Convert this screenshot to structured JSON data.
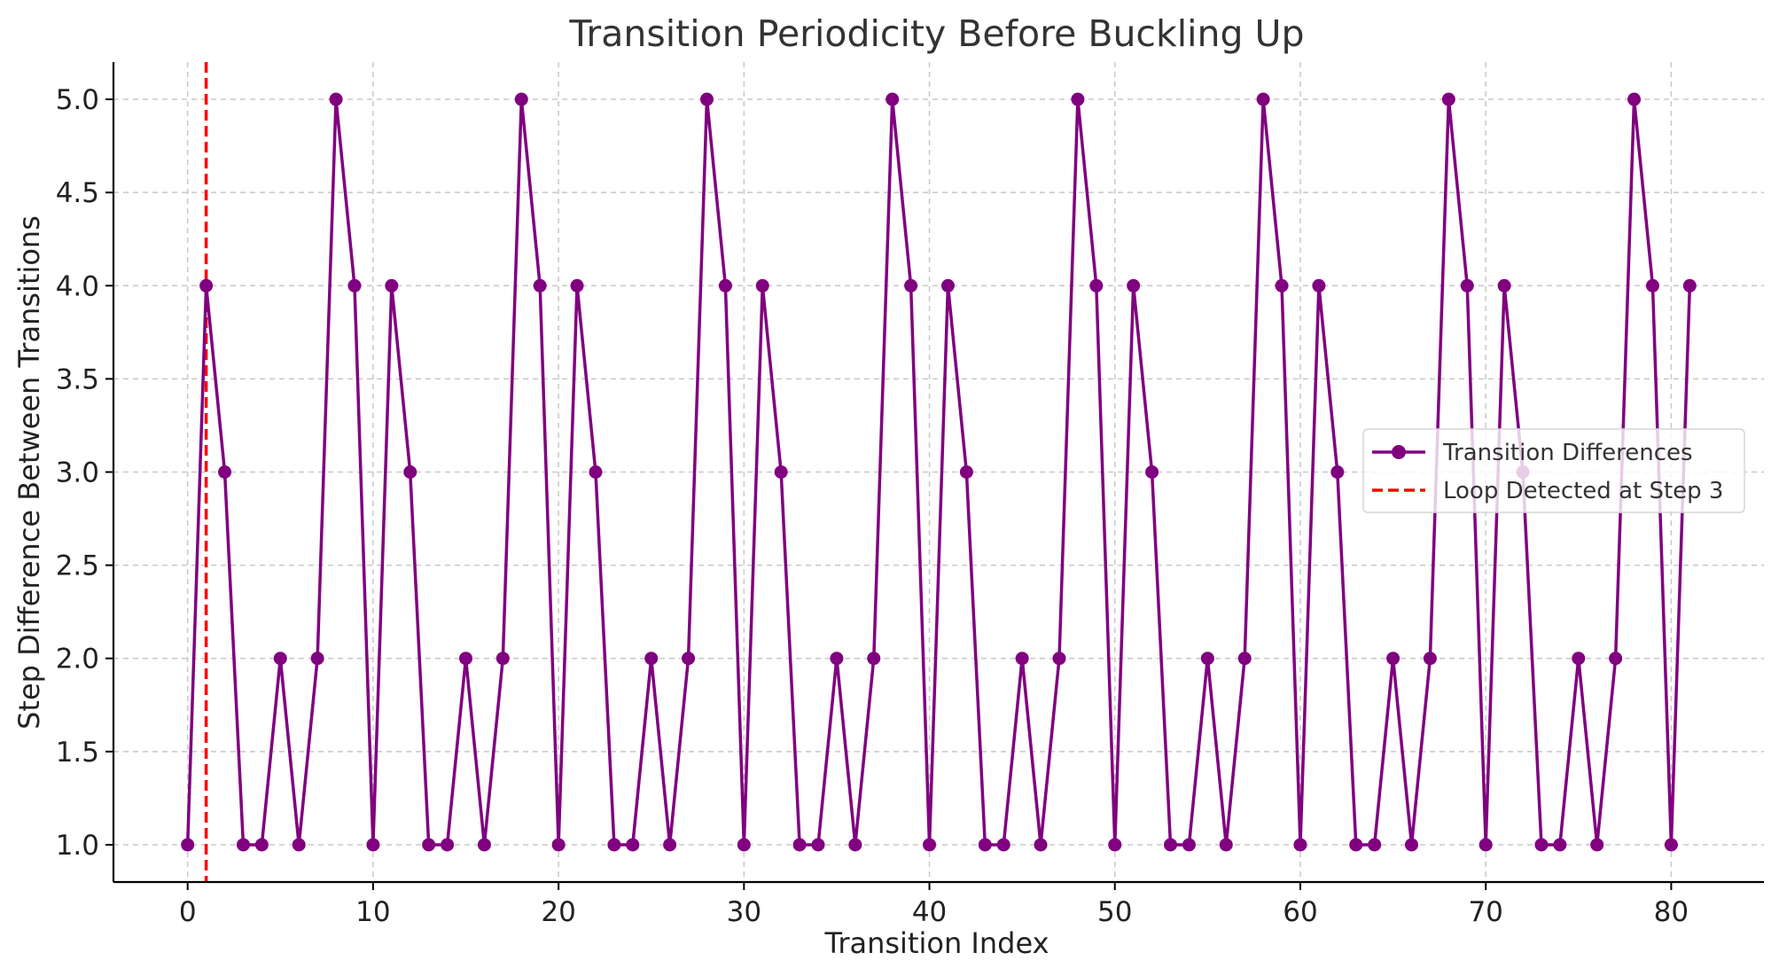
{
  "chart_data": {
    "type": "line",
    "title": "Transition Periodicity Before Buckling Up",
    "xlabel": "Transition Index",
    "ylabel": "Step Difference Between Transitions",
    "xlim": [
      -4,
      85
    ],
    "ylim": [
      0.8,
      5.2
    ],
    "x_ticks": [
      0,
      10,
      20,
      30,
      40,
      50,
      60,
      70,
      80
    ],
    "y_ticks": [
      1.0,
      1.5,
      2.0,
      2.5,
      3.0,
      3.5,
      4.0,
      4.5,
      5.0
    ],
    "grid": true,
    "legend_position": "center-right",
    "series": [
      {
        "name": "Transition Differences",
        "color": "#800080",
        "marker": "circle",
        "x": [
          0,
          1,
          2,
          3,
          4,
          5,
          6,
          7,
          8,
          9,
          10,
          11,
          12,
          13,
          14,
          15,
          16,
          17,
          18,
          19,
          20,
          21,
          22,
          23,
          24,
          25,
          26,
          27,
          28,
          29,
          30,
          31,
          32,
          33,
          34,
          35,
          36,
          37,
          38,
          39,
          40,
          41,
          42,
          43,
          44,
          45,
          46,
          47,
          48,
          49,
          50,
          51,
          52,
          53,
          54,
          55,
          56,
          57,
          58,
          59,
          60,
          61,
          62,
          63,
          64,
          65,
          66,
          67,
          68,
          69,
          70,
          71,
          72,
          73,
          74,
          75,
          76,
          77,
          78,
          79,
          80,
          81
        ],
        "values": [
          1,
          4,
          3,
          1,
          1,
          2,
          1,
          2,
          5,
          4,
          1,
          4,
          3,
          1,
          1,
          2,
          1,
          2,
          5,
          4,
          1,
          4,
          3,
          1,
          1,
          2,
          1,
          2,
          5,
          4,
          1,
          4,
          3,
          1,
          1,
          2,
          1,
          2,
          5,
          4,
          1,
          4,
          3,
          1,
          1,
          2,
          1,
          2,
          5,
          4,
          1,
          4,
          3,
          1,
          1,
          2,
          1,
          2,
          5,
          4,
          1,
          4,
          3,
          1,
          1,
          2,
          1,
          2,
          5,
          4,
          1,
          4,
          3,
          1,
          1,
          2,
          1,
          2,
          5,
          4,
          1,
          4
        ]
      }
    ],
    "vlines": [
      {
        "name": "Loop Detected at Step 3",
        "x": 1,
        "color": "#ff0000",
        "style": "dashed"
      }
    ]
  }
}
